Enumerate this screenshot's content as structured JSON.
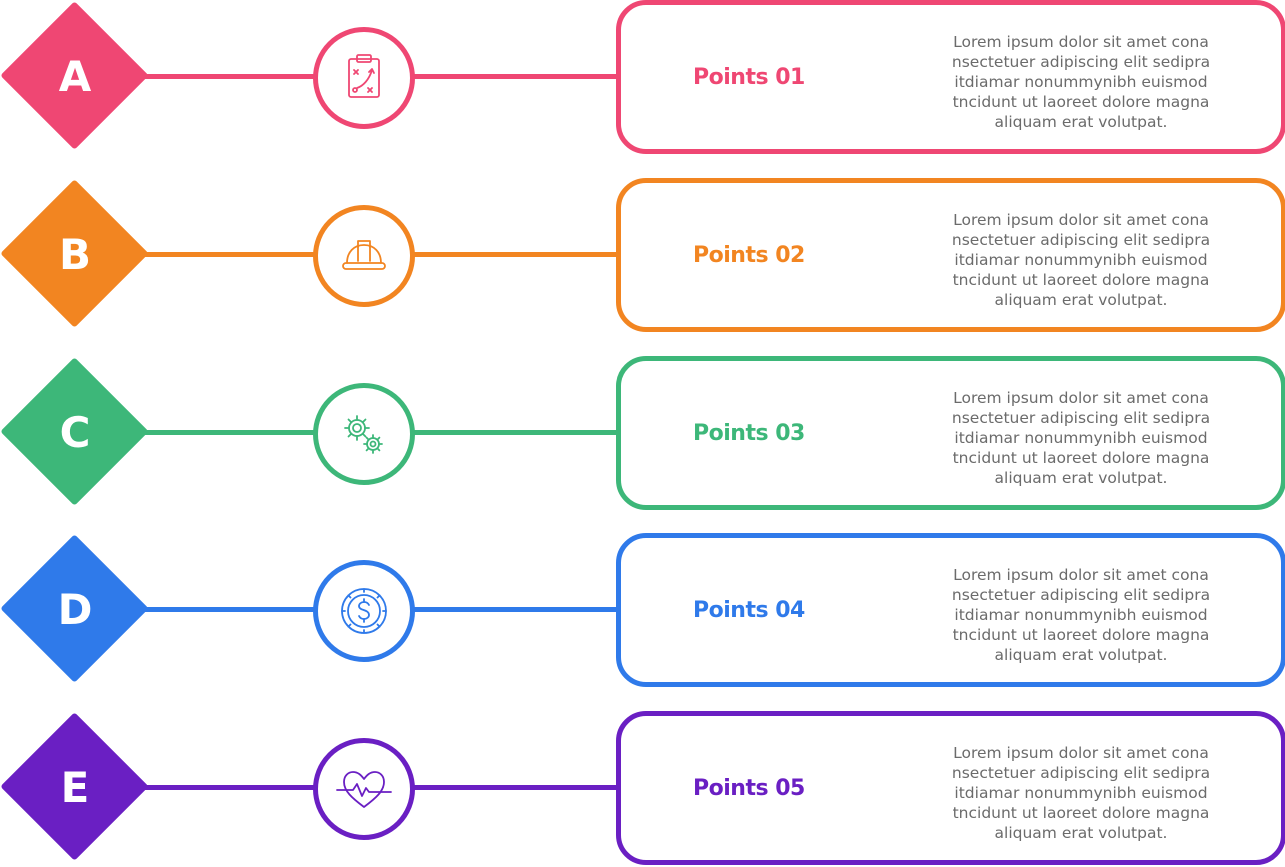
{
  "rows": [
    {
      "letter": "A",
      "title": "Points 01",
      "color": "#EF4773",
      "icon": "clipboard-strategy-icon",
      "lines": [
        "Lorem ipsum dolor sit amet cona",
        "nsectetuer adipiscing elit sedipra",
        "itdiamar nonummynibh euismod",
        "tncidunt ut laoreet dolore magna",
        "aliquam erat volutpat."
      ]
    },
    {
      "letter": "B",
      "title": "Points 02",
      "color": "#F28521",
      "icon": "hard-hat-icon",
      "lines": [
        "Lorem ipsum dolor sit amet cona",
        "nsectetuer adipiscing elit sedipra",
        "itdiamar nonummynibh euismod",
        "tncidunt ut laoreet dolore magna",
        "aliquam erat volutpat."
      ]
    },
    {
      "letter": "C",
      "title": "Points 03",
      "color": "#3DB779",
      "icon": "gears-icon",
      "lines": [
        "Lorem ipsum dolor sit amet cona",
        "nsectetuer adipiscing elit sedipra",
        "itdiamar nonummynibh euismod",
        "tncidunt ut laoreet dolore magna",
        "aliquam erat volutpat."
      ]
    },
    {
      "letter": "D",
      "title": "Points 04",
      "color": "#2F7AEA",
      "icon": "dollar-coin-icon",
      "lines": [
        "Lorem ipsum dolor sit amet cona",
        "nsectetuer adipiscing elit sedipra",
        "itdiamar nonummynibh euismod",
        "tncidunt ut laoreet dolore magna",
        "aliquam erat volutpat."
      ]
    },
    {
      "letter": "E",
      "title": "Points 05",
      "color": "#6A1FC3",
      "icon": "heartbeat-icon",
      "lines": [
        "Lorem ipsum dolor sit amet cona",
        "nsectetuer adipiscing elit sedipra",
        "itdiamar nonummynibh euismod",
        "tncidunt ut laoreet dolore magna",
        "aliquam erat volutpat."
      ]
    }
  ]
}
